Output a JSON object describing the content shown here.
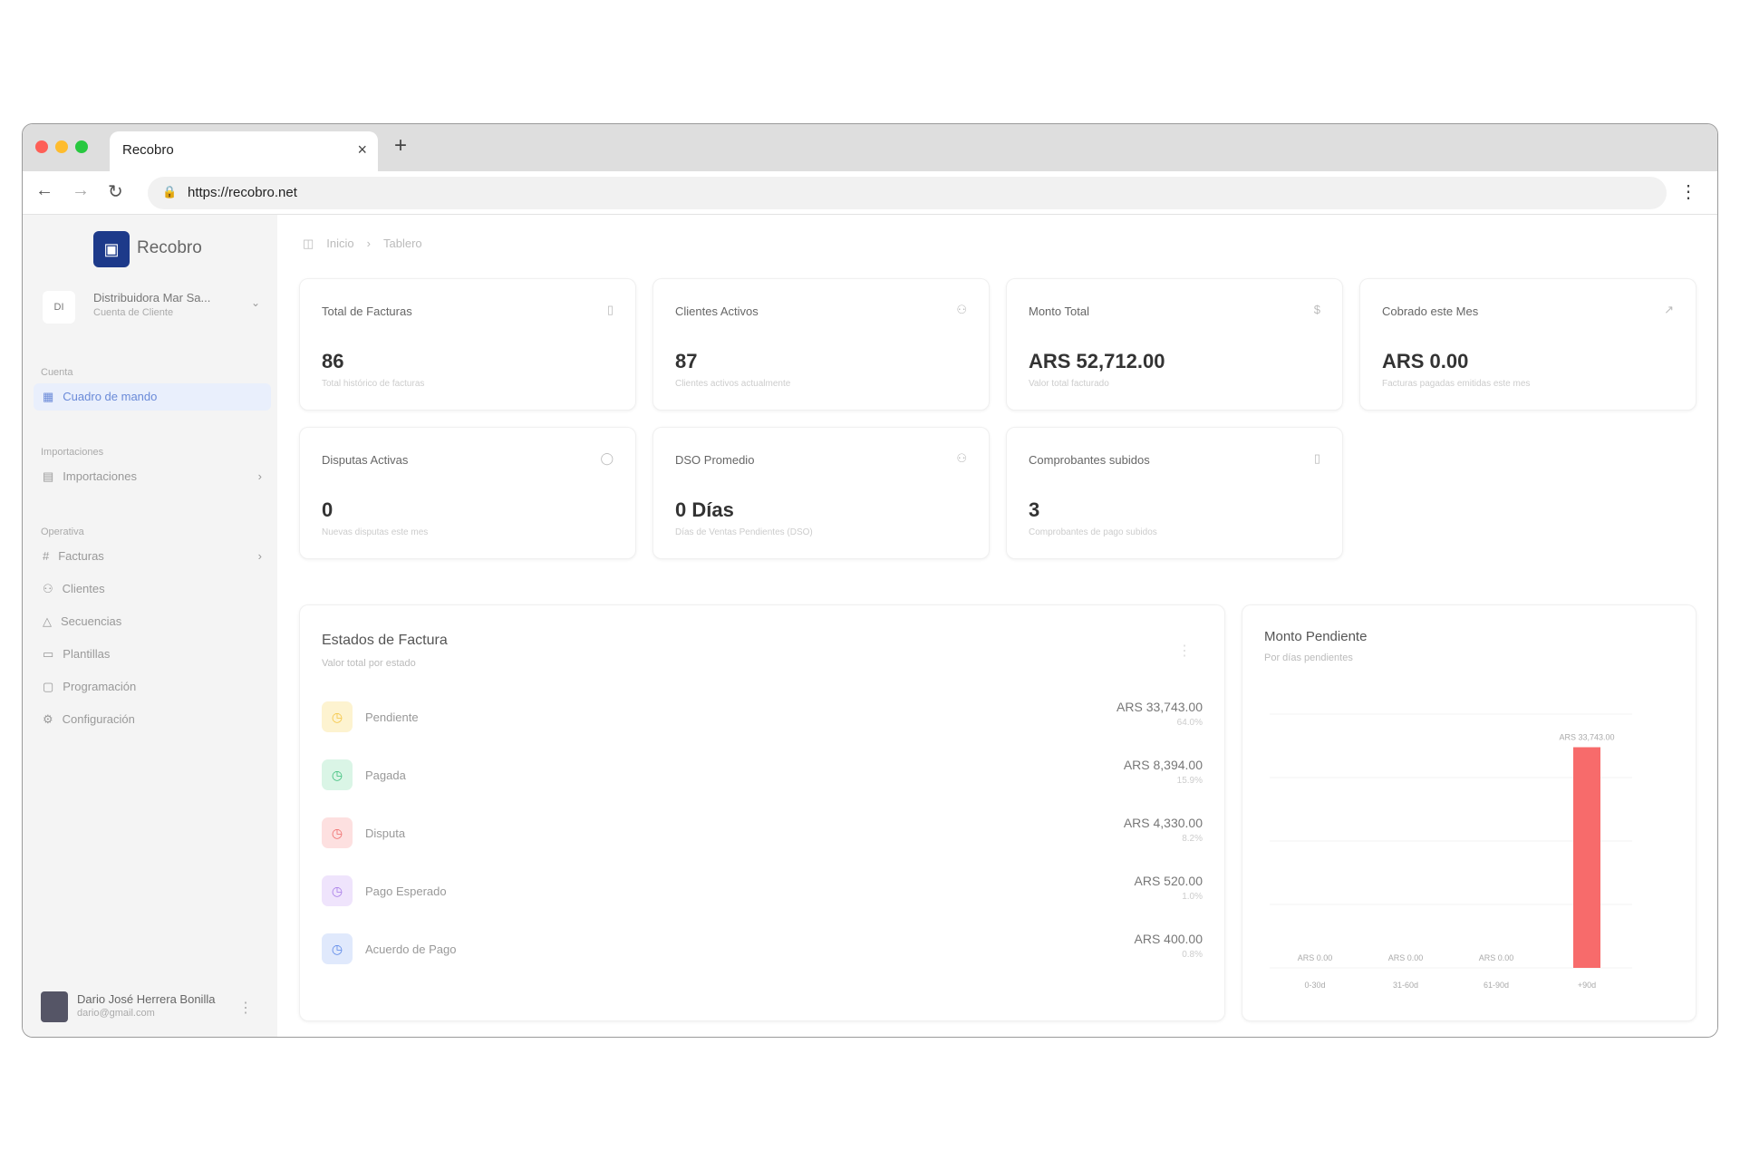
{
  "browser": {
    "tab_title": "Recobro",
    "url": "https://recobro.net"
  },
  "sidebar": {
    "brand": "Recobro",
    "org_name": "Distribuidora Mar Sa...",
    "org_sub": "Cuenta de Cliente",
    "org_initials": "DI",
    "sections": [
      {
        "label": "Cuenta",
        "items": [
          {
            "label": "Cuadro de mando",
            "icon": "dashboard-icon",
            "active": true
          }
        ]
      },
      {
        "label": "Importaciones",
        "items": [
          {
            "label": "Importaciones",
            "icon": "import-icon",
            "arrow": true
          }
        ]
      },
      {
        "label": "Operativa",
        "items": [
          {
            "label": "Facturas",
            "icon": "invoice-icon",
            "arrow": true
          },
          {
            "label": "Clientes",
            "icon": "users-icon"
          },
          {
            "label": "Secuencias",
            "icon": "sequence-icon"
          },
          {
            "label": "Plantillas",
            "icon": "template-icon"
          },
          {
            "label": "Programación",
            "icon": "calendar-icon"
          },
          {
            "label": "Configuración",
            "icon": "gear-icon"
          }
        ]
      }
    ],
    "user": {
      "name": "Dario José Herrera Bonilla",
      "email": "dario@gmail.com"
    }
  },
  "breadcrumb": [
    "Inicio",
    "Tablero"
  ],
  "cards": [
    {
      "title": "Total de Facturas",
      "value": "86",
      "desc": "Total histórico de facturas",
      "icon": "document-icon"
    },
    {
      "title": "Clientes Activos",
      "value": "87",
      "desc": "Clientes activos actualmente",
      "icon": "users-icon"
    },
    {
      "title": "Monto Total",
      "value": "ARS 52,712.00",
      "desc": "Valor total facturado",
      "icon": "dollar-icon"
    },
    {
      "title": "Cobrado este Mes",
      "value": "ARS 0.00",
      "desc": "Facturas pagadas emitidas este mes",
      "icon": "trend-icon"
    },
    {
      "title": "Disputas Activas",
      "value": "0",
      "desc": "Nuevas disputas este mes",
      "icon": "alert-icon"
    },
    {
      "title": "DSO Promedio",
      "value": "0 Días",
      "desc": "Días de Ventas Pendientes (DSO)",
      "icon": "clock-icon"
    },
    {
      "title": "Comprobantes subidos",
      "value": "3",
      "desc": "Comprobantes de pago subidos",
      "icon": "file-icon"
    }
  ],
  "estados": {
    "title": "Estados de Factura",
    "subtitle": "Valor total por estado",
    "rows": [
      {
        "label": "Pendiente",
        "amount": "ARS 33,743.00",
        "pct": "64.0%",
        "color": "#f5c542",
        "bg": "#fdf3d0"
      },
      {
        "label": "Pagada",
        "amount": "ARS 8,394.00",
        "pct": "15.9%",
        "color": "#3cbf7a",
        "bg": "#daf5e6"
      },
      {
        "label": "Disputa",
        "amount": "ARS 4,330.00",
        "pct": "8.2%",
        "color": "#ef6b6b",
        "bg": "#fde0e0"
      },
      {
        "label": "Pago Esperado",
        "amount": "ARS 520.00",
        "pct": "1.0%",
        "color": "#a77ae8",
        "bg": "#efe4fc"
      },
      {
        "label": "Acuerdo de Pago",
        "amount": "ARS 400.00",
        "pct": "0.8%",
        "color": "#5a86e8",
        "bg": "#e0e9fc"
      }
    ]
  },
  "chart_data": {
    "type": "bar",
    "title": "Monto Pendiente",
    "subtitle": "Por días pendientes",
    "categories": [
      "0-30d",
      "31-60d",
      "61-90d",
      "+90d"
    ],
    "values": [
      0,
      0,
      0,
      33743
    ],
    "labels": [
      "ARS 0.00",
      "ARS 0.00",
      "ARS 0.00",
      "ARS 33,743.00"
    ],
    "bar_color": "#f76b6b",
    "grid": true
  }
}
